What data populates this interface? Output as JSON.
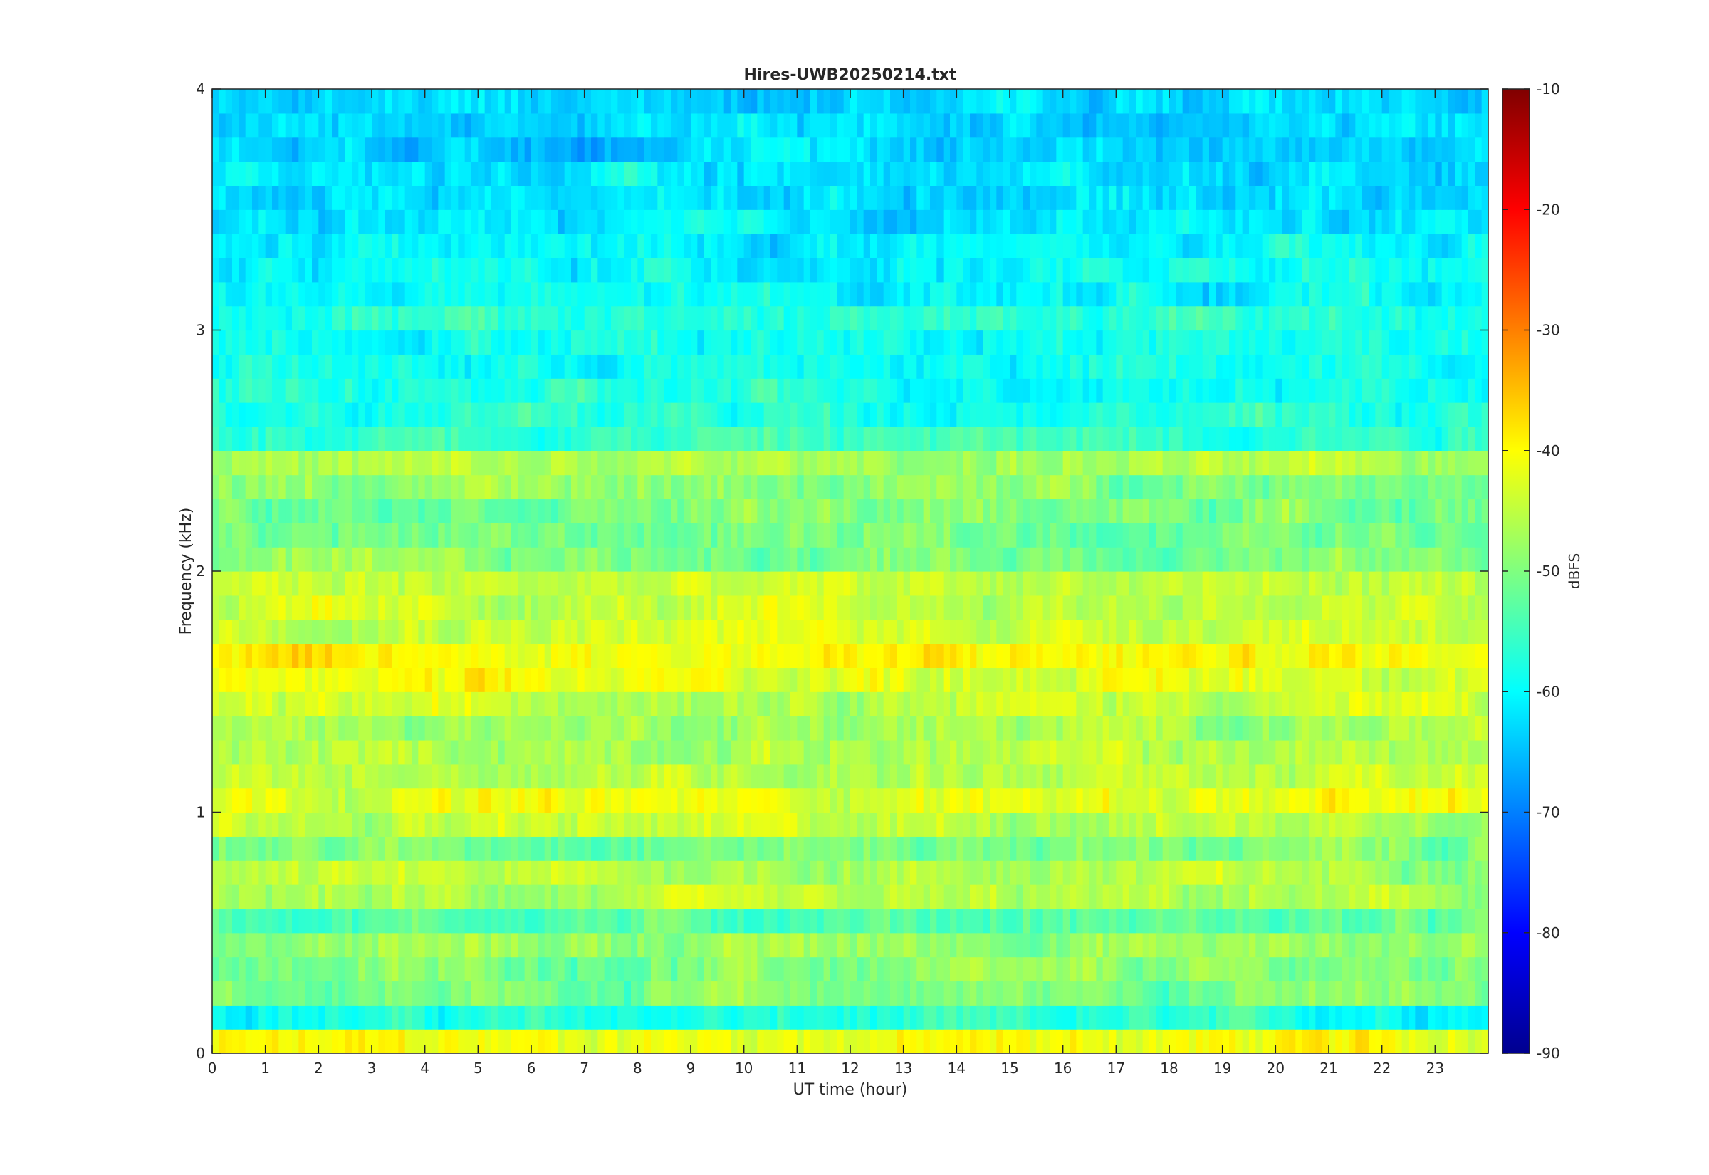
{
  "chart_data": {
    "type": "heatmap",
    "title": "Hires-UWB20250214.txt",
    "xlabel": "UT time (hour)",
    "ylabel": "Frequency (kHz)",
    "xlim": [
      0,
      24
    ],
    "ylim": [
      0,
      4
    ],
    "x_ticks": [
      0,
      1,
      2,
      3,
      4,
      5,
      6,
      7,
      8,
      9,
      10,
      11,
      12,
      13,
      14,
      15,
      16,
      17,
      18,
      19,
      20,
      21,
      22,
      23
    ],
    "y_ticks": [
      0,
      1,
      2,
      3,
      4
    ],
    "colorbar": {
      "label": "dBFS",
      "clim": [
        -90,
        -10
      ],
      "ticks": [
        -10,
        -20,
        -30,
        -40,
        -50,
        -60,
        -70,
        -80,
        -90
      ],
      "colormap": "jet"
    },
    "band_centers_khz": [
      0.05,
      0.15,
      0.25,
      0.35,
      0.45,
      0.55,
      0.65,
      0.75,
      0.85,
      0.95,
      1.05,
      1.15,
      1.25,
      1.35,
      1.45,
      1.55,
      1.65,
      1.75,
      1.85,
      1.95,
      2.05,
      2.15,
      2.25,
      2.35,
      2.45,
      2.55,
      2.65,
      2.75,
      2.85,
      2.95,
      3.05,
      3.15,
      3.25,
      3.35,
      3.45,
      3.55,
      3.65,
      3.75,
      3.85,
      3.95
    ],
    "band_level_dbfs": [
      -41,
      -58,
      -50,
      -50,
      -48,
      -53,
      -47,
      -46,
      -50,
      -45,
      -42,
      -45,
      -46,
      -47,
      -44,
      -42,
      -40,
      -43,
      -45,
      -45,
      -50,
      -51,
      -50,
      -49,
      -47,
      -55,
      -57,
      -58,
      -59,
      -58,
      -57,
      -60,
      -60,
      -61,
      -62,
      -62,
      -62,
      -63,
      -63,
      -63
    ]
  }
}
